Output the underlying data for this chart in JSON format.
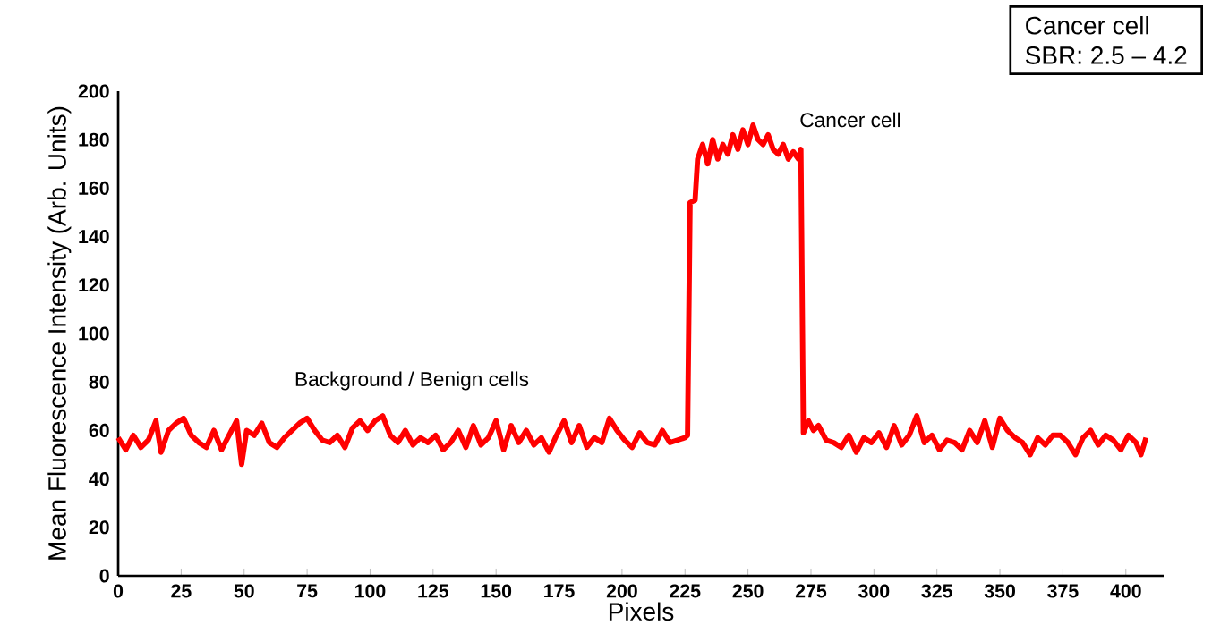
{
  "chart_data": {
    "type": "line",
    "xlabel": "Pixels",
    "ylabel": "Mean Fluorescence Intensity (Arb. Units)",
    "xlim": [
      0,
      415
    ],
    "ylim": [
      0,
      200
    ],
    "xticks": [
      0,
      25,
      50,
      75,
      100,
      125,
      150,
      175,
      200,
      225,
      250,
      275,
      300,
      325,
      350,
      375,
      400
    ],
    "yticks": [
      0,
      20,
      40,
      60,
      80,
      100,
      120,
      140,
      160,
      180,
      200
    ],
    "grid": false,
    "marker": "none",
    "line_style": "solid",
    "annotations": [
      "Background / Benign cells",
      "Cancer cell",
      "Cancer cell",
      "SBR: 2.5 – 4.2"
    ],
    "series": [
      {
        "color": "#ff0000",
        "x": [
          0,
          3,
          6,
          9,
          12,
          15,
          17,
          20,
          23,
          26,
          29,
          32,
          35,
          38,
          41,
          44,
          47,
          49,
          51,
          54,
          57,
          60,
          63,
          66,
          69,
          72,
          75,
          78,
          81,
          84,
          87,
          90,
          93,
          96,
          99,
          102,
          105,
          108,
          111,
          114,
          117,
          120,
          123,
          126,
          129,
          132,
          135,
          138,
          141,
          144,
          147,
          150,
          153,
          156,
          159,
          162,
          165,
          168,
          171,
          174,
          177,
          180,
          183,
          186,
          189,
          192,
          195,
          198,
          201,
          204,
          207,
          210,
          213,
          216,
          219,
          222,
          225,
          226,
          227,
          229,
          230,
          232,
          234,
          236,
          238,
          240,
          242,
          244,
          246,
          248,
          250,
          252,
          254,
          256,
          258,
          260,
          262,
          264,
          266,
          268,
          270,
          271,
          272,
          274,
          276,
          278,
          281,
          284,
          287,
          290,
          293,
          296,
          299,
          302,
          305,
          308,
          311,
          314,
          317,
          320,
          323,
          326,
          329,
          332,
          335,
          338,
          341,
          344,
          347,
          350,
          353,
          356,
          359,
          362,
          365,
          368,
          371,
          374,
          377,
          380,
          383,
          386,
          389,
          392,
          395,
          398,
          401,
          404,
          406,
          408
        ],
        "values": [
          57,
          52,
          58,
          53,
          56,
          64,
          51,
          60,
          63,
          65,
          58,
          55,
          53,
          60,
          52,
          58,
          64,
          46,
          60,
          58,
          63,
          55,
          53,
          57,
          60,
          63,
          65,
          60,
          56,
          55,
          58,
          53,
          61,
          64,
          60,
          64,
          66,
          58,
          55,
          60,
          54,
          57,
          55,
          58,
          52,
          55,
          60,
          53,
          62,
          54,
          57,
          64,
          52,
          62,
          55,
          60,
          54,
          57,
          51,
          58,
          64,
          55,
          62,
          53,
          57,
          55,
          65,
          60,
          56,
          53,
          59,
          55,
          54,
          60,
          55,
          56,
          57,
          58,
          154,
          155,
          172,
          178,
          170,
          180,
          172,
          178,
          174,
          182,
          176,
          184,
          178,
          186,
          180,
          178,
          182,
          176,
          174,
          178,
          172,
          175,
          172,
          176,
          59,
          64,
          60,
          62,
          56,
          55,
          53,
          58,
          51,
          57,
          55,
          59,
          53,
          62,
          54,
          58,
          66,
          55,
          58,
          52,
          56,
          55,
          52,
          60,
          55,
          64,
          53,
          65,
          60,
          57,
          55,
          50,
          57,
          54,
          58,
          58,
          55,
          50,
          57,
          60,
          54,
          58,
          56,
          52,
          58,
          55,
          50,
          57
        ]
      }
    ]
  }
}
